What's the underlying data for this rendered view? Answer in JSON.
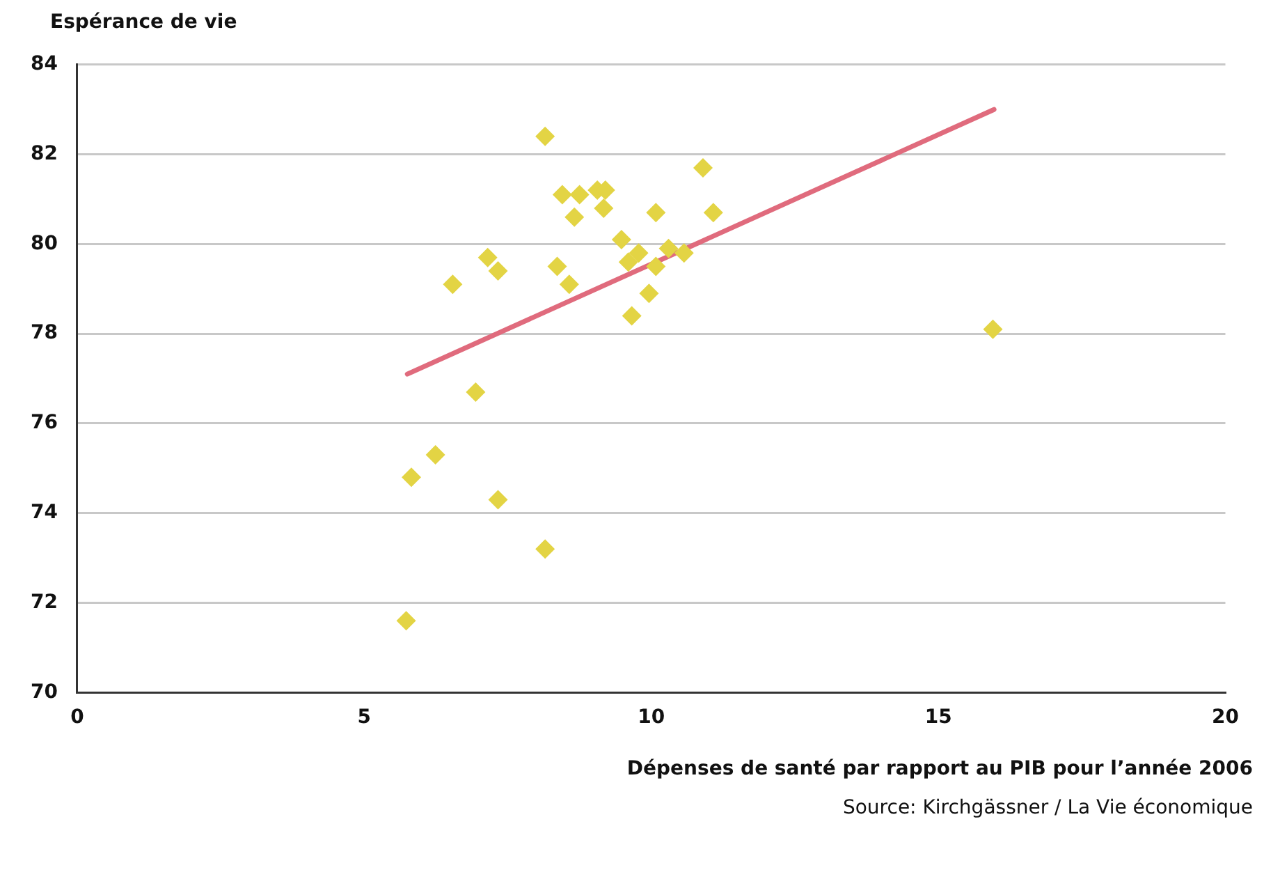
{
  "chart_data": {
    "type": "scatter",
    "xlabel": "Dépenses de santé par rapport au PIB pour l’année 2006",
    "ylabel": "Espérance de vie",
    "annotations": [
      "Source: Kirchgässner / La Vie économique"
    ],
    "xlim": [
      0,
      20
    ],
    "xticks": [
      0,
      5,
      10,
      15,
      20
    ],
    "ylim": [
      70,
      84
    ],
    "yticks": [
      70,
      72,
      74,
      76,
      78,
      80,
      82,
      84
    ],
    "grid": "y",
    "legend": false,
    "marker": "diamond",
    "series": [
      {
        "color": "#e3d444",
        "x": [
          8.15,
          8.45,
          8.75,
          9.06,
          9.2,
          9.17,
          8.66,
          10.9,
          10.08,
          11.08,
          9.48,
          9.78,
          9.6,
          10.3,
          10.57,
          10.08,
          9.96,
          9.66,
          8.36,
          8.57,
          7.15,
          7.33,
          6.54,
          6.94,
          6.24,
          5.82,
          7.33,
          8.15,
          5.73,
          15.95
        ],
        "values": [
          82.4,
          81.1,
          81.1,
          81.2,
          81.2,
          80.8,
          80.6,
          81.7,
          80.7,
          80.7,
          80.1,
          79.8,
          79.6,
          79.9,
          79.8,
          79.5,
          78.9,
          78.4,
          79.5,
          79.1,
          79.7,
          79.4,
          79.1,
          76.7,
          75.3,
          74.8,
          74.3,
          73.2,
          71.6,
          78.1
        ]
      },
      {
        "type": "line",
        "color": "#e06b7d",
        "marker": "none",
        "line_style": "solid",
        "x": [
          5.75,
          15.97
        ],
        "values": [
          77.1,
          83.0
        ]
      }
    ]
  }
}
